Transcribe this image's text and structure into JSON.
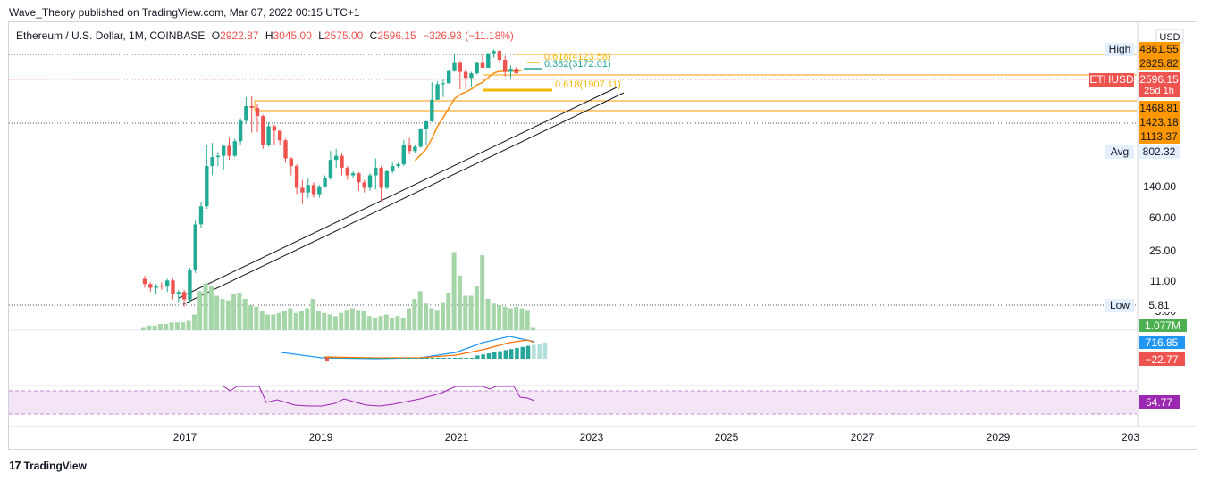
{
  "publisher_line": "Wave_Theory published on TradingView.com, Mar 07, 2022 00:15 UTC+1",
  "brand": "TradingView",
  "legend": {
    "symbol": "Ethereum / U.S. Dollar, 1M, COINBASE",
    "o_label": "O",
    "o_value": "2922.87",
    "h_label": "H",
    "h_value": "3045.00",
    "l_label": "L",
    "l_value": "2575.00",
    "c_label": "C",
    "c_value": "2596.15",
    "change": "−326.93 (−11.18%)"
  },
  "colors": {
    "up": "#26a69a",
    "up_candle": "#22ab94",
    "down": "#ef5350",
    "volume": "#a5d6a7",
    "ema": "#f7931a",
    "fib": "#f5b700",
    "tag_orange": "#ff9800",
    "macd": "#2196f3",
    "macd_signal": "#ff6d00",
    "rsi": "#9c27b0",
    "rsi_band": "#f3e5f5"
  },
  "chart_data": {
    "type": "candlestick",
    "symbol": "ETHUSD",
    "interval": "1M",
    "x_axis_ticks": [
      "2017",
      "2019",
      "2021",
      "2023",
      "2025",
      "2027",
      "2029",
      "203"
    ],
    "y_axis_scale": "log",
    "y_axis_ticks": [
      "140.00",
      "60.00",
      "25.00",
      "11.00",
      "5.00"
    ],
    "currency": "USD",
    "price_tags": [
      {
        "label": "High",
        "value": "4861.55"
      },
      {
        "label": "",
        "value": "2825.82"
      },
      {
        "label": "ETHUSD",
        "value": "2596.15",
        "sub": "25d 1h"
      },
      {
        "label": "",
        "value": "1468.81"
      },
      {
        "label": "",
        "value": "1423.18"
      },
      {
        "label": "",
        "value": "1113.37"
      },
      {
        "label": "Avg",
        "value": "802.32"
      },
      {
        "label": "Low",
        "value": "5.81"
      }
    ],
    "fib_levels": [
      {
        "ratio": "0.618",
        "price": "4123.58"
      },
      {
        "ratio": "0.382",
        "price": "3172.01"
      },
      {
        "ratio": "0.618",
        "price": "1907.11"
      }
    ],
    "indicator_values": {
      "volume": "1.077M",
      "macd": "716.85",
      "macd_hist": "−22.77",
      "rsi": "54.77"
    },
    "candles": [
      [
        12,
        13,
        9.5,
        10.5
      ],
      [
        10.5,
        11,
        8.5,
        9.5
      ],
      [
        9.5,
        10.5,
        8,
        10
      ],
      [
        10,
        11,
        9,
        9.8
      ],
      [
        9.8,
        12,
        8.5,
        11.5
      ],
      [
        11.5,
        12,
        7,
        8
      ],
      [
        8,
        9,
        6.5,
        8.5
      ],
      [
        8.5,
        9,
        5.8,
        7
      ],
      [
        7,
        16,
        6.5,
        15
      ],
      [
        15,
        55,
        14,
        50
      ],
      [
        50,
        90,
        45,
        80
      ],
      [
        80,
        400,
        75,
        230
      ],
      [
        230,
        420,
        180,
        290
      ],
      [
        290,
        330,
        230,
        300
      ],
      [
        300,
        395,
        210,
        390
      ],
      [
        390,
        480,
        270,
        300
      ],
      [
        300,
        470,
        290,
        440
      ],
      [
        440,
        800,
        400,
        750
      ],
      [
        750,
        1400,
        700,
        1100
      ],
      [
        1100,
        1420,
        550,
        1050
      ],
      [
        1050,
        1180,
        560,
        850
      ],
      [
        850,
        880,
        360,
        400
      ],
      [
        400,
        720,
        380,
        650
      ],
      [
        650,
        680,
        400,
        580
      ],
      [
        580,
        570,
        400,
        450
      ],
      [
        450,
        470,
        250,
        280
      ],
      [
        280,
        290,
        180,
        230
      ],
      [
        230,
        240,
        110,
        130
      ],
      [
        130,
        160,
        85,
        115
      ],
      [
        115,
        165,
        100,
        140
      ],
      [
        140,
        150,
        100,
        110
      ],
      [
        110,
        140,
        100,
        135
      ],
      [
        135,
        180,
        130,
        170
      ],
      [
        170,
        340,
        160,
        270
      ],
      [
        270,
        360,
        220,
        300
      ],
      [
        300,
        320,
        180,
        220
      ],
      [
        220,
        230,
        160,
        180
      ],
      [
        180,
        200,
        170,
        190
      ],
      [
        190,
        195,
        120,
        150
      ],
      [
        150,
        160,
        115,
        130
      ],
      [
        130,
        190,
        120,
        180
      ],
      [
        180,
        280,
        125,
        220
      ],
      [
        220,
        230,
        90,
        130
      ],
      [
        130,
        210,
        125,
        200
      ],
      [
        200,
        250,
        190,
        230
      ],
      [
        230,
        250,
        220,
        240
      ],
      [
        240,
        450,
        230,
        400
      ],
      [
        400,
        480,
        310,
        340
      ],
      [
        340,
        400,
        320,
        380
      ],
      [
        380,
        620,
        370,
        610
      ],
      [
        610,
        750,
        400,
        740
      ],
      [
        740,
        2050,
        720,
        1300
      ],
      [
        1300,
        2100,
        1300,
        1950
      ],
      [
        1950,
        2200,
        1400,
        2000
      ],
      [
        2000,
        2800,
        2000,
        2750
      ],
      [
        2750,
        4400,
        2700,
        3400
      ],
      [
        3400,
        3600,
        1700,
        2700
      ],
      [
        2700,
        2900,
        1700,
        2300
      ],
      [
        2300,
        2700,
        1800,
        2600
      ],
      [
        2600,
        3500,
        2500,
        3400
      ],
      [
        3400,
        4200,
        3000,
        3000
      ],
      [
        3000,
        4400,
        3000,
        4400
      ],
      [
        4400,
        4850,
        3900,
        4650
      ],
      [
        4650,
        4800,
        3500,
        3700
      ],
      [
        3700,
        4100,
        2400,
        2700
      ],
      [
        2700,
        3200,
        2300,
        2920
      ],
      [
        2922.87,
        3045,
        2575,
        2596.15
      ]
    ]
  }
}
